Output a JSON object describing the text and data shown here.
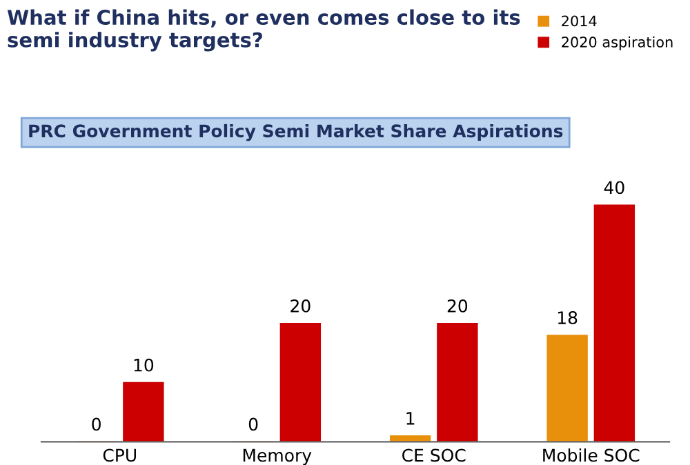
{
  "chart_data": {
    "type": "bar",
    "title": "What if China hits, or even comes close to its\nsemi industry targets?",
    "subtitle": "PRC Government Policy Semi Market Share Aspirations",
    "categories": [
      "CPU",
      "Memory",
      "CE SOC",
      "Mobile SOC"
    ],
    "series": [
      {
        "name": "2014",
        "color": "#e8900c",
        "values": [
          0,
          0,
          1,
          18
        ]
      },
      {
        "name": "2020 aspiration",
        "color": "#cc0000",
        "values": [
          10,
          20,
          20,
          40
        ]
      }
    ],
    "data_labels": true,
    "legend": "top right",
    "grid": false
  }
}
